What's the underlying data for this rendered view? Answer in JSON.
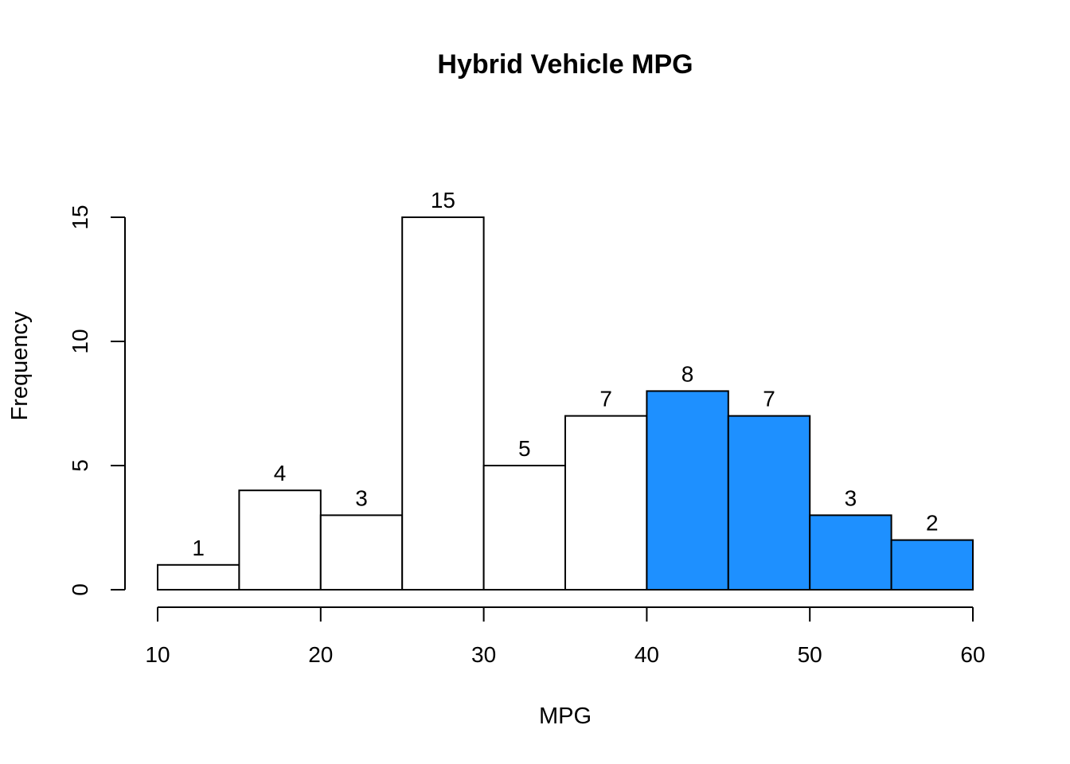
{
  "chart_data": {
    "type": "bar",
    "title": "Hybrid Vehicle MPG",
    "xlabel": "MPG",
    "ylabel": "Frequency",
    "bins": [
      {
        "from": 10,
        "to": 15,
        "count": 1,
        "highlight": false
      },
      {
        "from": 15,
        "to": 20,
        "count": 4,
        "highlight": false
      },
      {
        "from": 20,
        "to": 25,
        "count": 3,
        "highlight": false
      },
      {
        "from": 25,
        "to": 30,
        "count": 15,
        "highlight": false
      },
      {
        "from": 30,
        "to": 35,
        "count": 5,
        "highlight": false
      },
      {
        "from": 35,
        "to": 40,
        "count": 7,
        "highlight": false
      },
      {
        "from": 40,
        "to": 45,
        "count": 8,
        "highlight": true
      },
      {
        "from": 45,
        "to": 50,
        "count": 7,
        "highlight": true
      },
      {
        "from": 50,
        "to": 55,
        "count": 3,
        "highlight": true
      },
      {
        "from": 55,
        "to": 60,
        "count": 2,
        "highlight": true
      }
    ],
    "xticks": [
      10,
      20,
      30,
      40,
      50,
      60
    ],
    "yticks": [
      0,
      5,
      10,
      15
    ],
    "xlim": [
      10,
      60
    ],
    "ylim": [
      0,
      15
    ],
    "colors": {
      "default_fill": "#ffffff",
      "highlight_fill": "#1e90ff",
      "stroke": "#000000"
    },
    "grid": false,
    "legend": "none"
  }
}
